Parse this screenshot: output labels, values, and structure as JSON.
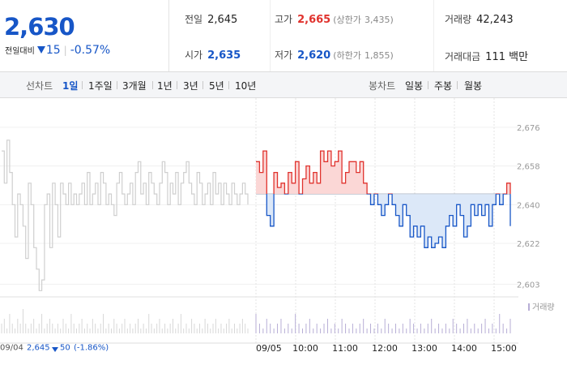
{
  "quote": {
    "price": "2,630",
    "change_label": "전일대비",
    "change_amount": "15",
    "change_pct": "-0.57%",
    "stats": {
      "prev_close_label": "전일",
      "prev_close": "2,645",
      "high_label": "고가",
      "high": "2,665",
      "upper_limit_label": "(상한가",
      "upper_limit": "3,435)",
      "volume_label": "거래량",
      "volume": "42,243",
      "open_label": "시가",
      "open": "2,635",
      "low_label": "저가",
      "low": "2,620",
      "lower_limit_label": "(하한가",
      "lower_limit": "1,855)",
      "amount_label": "거래대금",
      "amount": "111",
      "amount_unit": "백만"
    }
  },
  "tabs": {
    "line_label": "선차트",
    "line_periods": [
      "1일",
      "1주일",
      "3개월",
      "1년",
      "3년",
      "5년",
      "10년"
    ],
    "selected": "1일",
    "candle_label": "봉차트",
    "candle_periods": [
      "일봉",
      "주봉",
      "월봉"
    ]
  },
  "colors": {
    "up": "#e0322d",
    "down": "#1756c7",
    "prev_day_line": "#cfcfcf",
    "volume_bar": "#b7aed6"
  },
  "chart_data": {
    "type": "line",
    "y_ticks": [
      "2,676",
      "2,658",
      "2,640",
      "2,622",
      "2,603"
    ],
    "y_tick_values": [
      2676,
      2658,
      2640,
      2622,
      2603
    ],
    "ylim": [
      2599,
      2682
    ],
    "baseline": 2645,
    "x_labels": [
      "09/05",
      "10:00",
      "11:00",
      "12:00",
      "13:00",
      "14:00",
      "15:00"
    ],
    "volume_label": "거래량",
    "prev_day_footer": {
      "date": "09/04",
      "close": "2,645",
      "change": "50",
      "change_pct": "(-1.86%)"
    },
    "prev_day_values": [
      2665,
      2650,
      2670,
      2655,
      2640,
      2625,
      2645,
      2640,
      2630,
      2615,
      2650,
      2640,
      2620,
      2610,
      2600,
      2605,
      2640,
      2645,
      2620,
      2650,
      2640,
      2625,
      2650,
      2645,
      2640,
      2650,
      2640,
      2645,
      2640,
      2645,
      2650,
      2640,
      2655,
      2640,
      2645,
      2650,
      2640,
      2655,
      2650,
      2640,
      2645,
      2640,
      2635,
      2650,
      2655,
      2645,
      2640,
      2645,
      2650,
      2640,
      2655,
      2660,
      2645,
      2650,
      2640,
      2655,
      2650,
      2645,
      2640,
      2650,
      2660,
      2655,
      2640,
      2650,
      2645,
      2655,
      2640,
      2650,
      2655,
      2660,
      2650,
      2645,
      2640,
      2655,
      2650,
      2640,
      2645,
      2650,
      2640,
      2655,
      2645,
      2650,
      2640,
      2650,
      2645,
      2640,
      2650,
      2645,
      2640,
      2645,
      2650,
      2645,
      2640
    ],
    "today_values": [
      2660,
      2655,
      2665,
      2635,
      2630,
      2655,
      2648,
      2650,
      2645,
      2655,
      2650,
      2660,
      2645,
      2652,
      2658,
      2650,
      2655,
      2650,
      2665,
      2660,
      2665,
      2658,
      2660,
      2665,
      2650,
      2655,
      2660,
      2660,
      2655,
      2660,
      2650,
      2645,
      2640,
      2645,
      2640,
      2635,
      2640,
      2645,
      2640,
      2635,
      2630,
      2640,
      2635,
      2625,
      2630,
      2625,
      2630,
      2620,
      2625,
      2620,
      2622,
      2625,
      2620,
      2630,
      2635,
      2630,
      2640,
      2635,
      2625,
      2630,
      2640,
      2635,
      2640,
      2635,
      2640,
      2630,
      2640,
      2645,
      2640,
      2645,
      2650,
      2630
    ],
    "prev_day_volume": [
      2,
      3,
      1,
      4,
      2,
      1,
      3,
      2,
      5,
      2,
      1,
      2,
      3,
      1,
      2,
      4,
      1,
      2,
      3,
      2,
      1,
      2,
      1,
      3,
      2,
      1,
      4,
      2,
      1,
      2,
      3,
      1,
      2,
      1,
      3,
      2,
      1,
      2,
      4,
      1,
      2,
      1,
      3,
      2,
      1,
      2,
      3,
      1,
      2,
      1,
      2,
      3,
      1,
      2,
      1,
      4,
      2,
      1,
      2,
      3,
      1,
      2,
      1,
      2,
      3,
      1,
      2,
      4,
      1,
      2,
      1,
      3,
      2,
      1,
      2,
      1,
      3,
      2,
      1,
      2,
      3,
      1,
      2,
      1,
      2,
      3,
      1,
      2,
      1,
      2,
      3,
      2,
      1
    ],
    "today_volume": [
      4,
      2,
      1,
      3,
      2,
      1,
      2,
      3,
      1,
      2,
      1,
      4,
      2,
      1,
      2,
      3,
      1,
      2,
      1,
      2,
      3,
      1,
      2,
      1,
      3,
      2,
      1,
      2,
      1,
      2,
      3,
      1,
      2,
      1,
      2,
      1,
      3,
      2,
      1,
      2,
      1,
      2,
      1,
      3,
      2,
      1,
      2,
      1,
      2,
      3,
      1,
      2,
      1,
      2,
      1,
      3,
      2,
      1,
      2,
      3,
      1,
      2,
      1,
      2,
      3,
      1,
      2,
      1,
      4,
      2,
      1,
      3
    ]
  }
}
